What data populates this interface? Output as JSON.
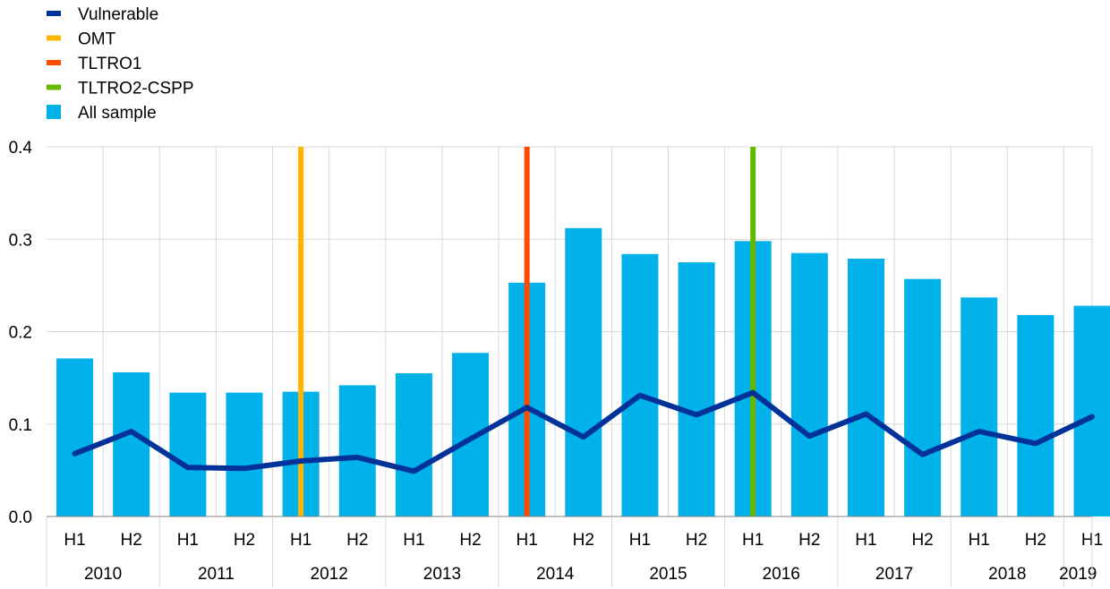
{
  "chart_data": {
    "type": "bar",
    "title": "",
    "xlabel": "",
    "ylabel": "",
    "ylim": [
      0,
      0.4
    ],
    "y_ticks": [
      "0.0",
      "0.1",
      "0.2",
      "0.3",
      "0.4"
    ],
    "y_tick_values": [
      0,
      0.1,
      0.2,
      0.3,
      0.4
    ],
    "grid": true,
    "legend_position": "top-left",
    "categories": [
      "H1",
      "H2",
      "H1",
      "H2",
      "H1",
      "H2",
      "H1",
      "H2",
      "H1",
      "H2",
      "H1",
      "H2",
      "H1",
      "H2",
      "H1",
      "H2",
      "H1",
      "H2",
      "H1"
    ],
    "years": [
      {
        "label": "2010",
        "span": 2
      },
      {
        "label": "2011",
        "span": 2
      },
      {
        "label": "2012",
        "span": 2
      },
      {
        "label": "2013",
        "span": 2
      },
      {
        "label": "2014",
        "span": 2
      },
      {
        "label": "2015",
        "span": 2
      },
      {
        "label": "2016",
        "span": 2
      },
      {
        "label": "2017",
        "span": 2
      },
      {
        "label": "2018",
        "span": 2
      },
      {
        "label": "2019",
        "span": 1
      }
    ],
    "series": [
      {
        "name": "Vulnerable",
        "kind": "line",
        "color": "#003299",
        "values": [
          0.068,
          0.092,
          0.053,
          0.052,
          0.06,
          0.064,
          0.049,
          0.084,
          0.118,
          0.086,
          0.131,
          0.11,
          0.134,
          0.087,
          0.111,
          0.067,
          0.092,
          0.079,
          0.108
        ]
      },
      {
        "name": "All sample",
        "kind": "bar",
        "color": "#00b1ea",
        "values": [
          0.171,
          0.156,
          0.134,
          0.134,
          0.135,
          0.142,
          0.155,
          0.177,
          0.253,
          0.312,
          0.284,
          0.275,
          0.298,
          0.285,
          0.279,
          0.257,
          0.237,
          0.218,
          0.228
        ]
      }
    ],
    "events": [
      {
        "name": "OMT",
        "color": "#ffb400",
        "index": 4
      },
      {
        "name": "TLTRO1",
        "color": "#ff4b00",
        "index": 8
      },
      {
        "name": "TLTRO2-CSPP",
        "color": "#65b800",
        "index": 12
      }
    ],
    "legend": [
      {
        "name": "Vulnerable",
        "color": "#003299",
        "shape": "line"
      },
      {
        "name": "OMT",
        "color": "#ffb400",
        "shape": "line"
      },
      {
        "name": "TLTRO1",
        "color": "#ff4b00",
        "shape": "line"
      },
      {
        "name": "TLTRO2-CSPP",
        "color": "#65b800",
        "shape": "line"
      },
      {
        "name": "All sample",
        "color": "#00b1ea",
        "shape": "square"
      }
    ]
  }
}
